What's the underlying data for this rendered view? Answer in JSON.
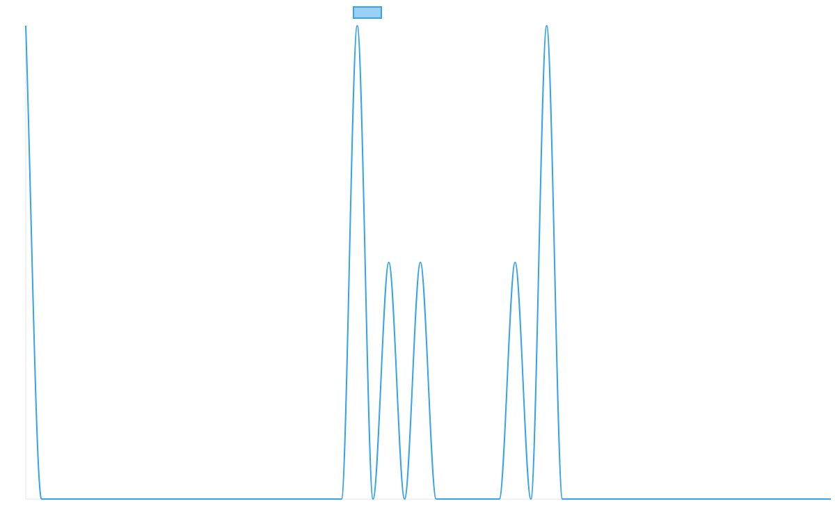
{
  "chart_data": {
    "type": "line",
    "title": "",
    "xlabel": "",
    "ylabel": "",
    "x": [
      0,
      1,
      2,
      3,
      4,
      5,
      6,
      7,
      8,
      9,
      10,
      11,
      12,
      13,
      14,
      15,
      16,
      17,
      18,
      19,
      20,
      21,
      22,
      23,
      24,
      25,
      26,
      27,
      28,
      29,
      30,
      31,
      32,
      33,
      34,
      35,
      36,
      37,
      38,
      39,
      40,
      41,
      42,
      43,
      44,
      45,
      46,
      47,
      48,
      49,
      50,
      51
    ],
    "ylim": [
      0,
      2
    ],
    "grid": false,
    "legend_position": "top-center",
    "series": [
      {
        "name": "",
        "color": "#36a2eb",
        "fill_color": "#9ad0f5",
        "values": [
          2,
          0,
          0,
          0,
          0,
          0,
          0,
          0,
          0,
          0,
          0,
          0,
          0,
          0,
          0,
          0,
          0,
          0,
          0,
          0,
          0,
          2,
          0,
          1,
          0,
          1,
          0,
          0,
          0,
          0,
          0,
          1,
          0,
          2,
          0,
          0,
          0,
          0,
          0,
          0,
          0,
          0,
          0,
          0,
          0,
          0,
          0,
          0,
          0,
          0,
          0,
          0
        ]
      }
    ]
  }
}
